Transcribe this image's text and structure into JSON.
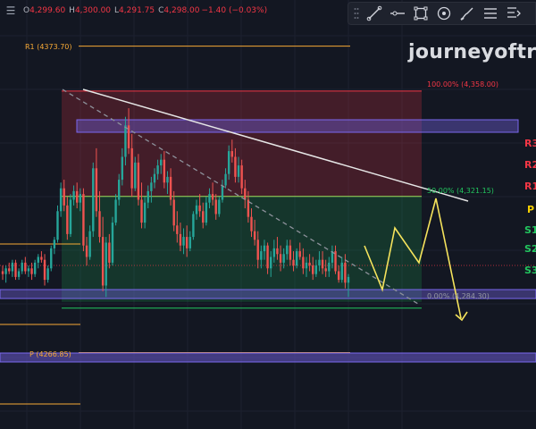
{
  "header": {
    "open_key": "O",
    "open_val": "4,299.60",
    "high_key": "H",
    "high_val": "4,300.00",
    "low_key": "L",
    "low_val": "4,291.75",
    "close_key": "C",
    "close_val": "4,298.00",
    "change": "−1.40 (−0.03%)"
  },
  "toolbar": {
    "icons": [
      "drag-handle-icon",
      "trend-line-icon",
      "horizontal-line-icon",
      "rectangle-icon",
      "circle-target-icon",
      "brush-icon",
      "text-lines-icon",
      "measure-icon"
    ]
  },
  "watermark": "journeyoftra",
  "levels": {
    "r1_left": "R1 (4373.70)",
    "p_left": "P (4266.85)",
    "fib_top": "100.00% (4,358.00)",
    "fib_mid": "50.00% (4,321.15)",
    "fib_bottom": "0.00% (4,284.30)"
  },
  "right_labels": [
    {
      "text": "R3",
      "color": "#f23645"
    },
    {
      "text": "R2",
      "color": "#f23645"
    },
    {
      "text": "R1",
      "color": "#f23645"
    },
    {
      "text": "P",
      "color": "#f5d000"
    },
    {
      "text": "S1",
      "color": "#22c55e"
    },
    {
      "text": "S2",
      "color": "#22c55e"
    },
    {
      "text": "S3",
      "color": "#22c55e"
    }
  ],
  "colors": {
    "background": "#131722",
    "bull": "#26a69a",
    "bear": "#ef5350",
    "projection": "#f5e35c",
    "trendline": "#e6e6e6",
    "zone": "#7b68ee"
  },
  "chart_data": {
    "type": "candlestick",
    "ylim": [
      4252,
      4382
    ],
    "fib_levels": [
      {
        "ratio": "100.00%",
        "price": 4358.0
      },
      {
        "ratio": "50.00%",
        "price": 4321.15
      },
      {
        "ratio": "0.00%",
        "price": 4284.3
      }
    ],
    "pivot_levels": [
      {
        "name": "R1",
        "price": 4373.7
      },
      {
        "name": "P",
        "price": 4266.85
      }
    ],
    "zones": [
      {
        "name": "upper-supply-zone",
        "low": 4346.0,
        "high": 4347.5
      },
      {
        "name": "lower-demand-zone",
        "low": 4284.6,
        "high": 4286.0
      },
      {
        "name": "pivot-zone",
        "low": 4265.8,
        "high": 4267.0
      }
    ],
    "projection_path": [
      {
        "x": 0,
        "y": 4307.0
      },
      {
        "x": 1,
        "y": 4287.5
      },
      {
        "x": 2,
        "y": 4313.0
      },
      {
        "x": 3,
        "y": 4298.0
      },
      {
        "x": 4,
        "y": 4322.0
      },
      {
        "x": 5,
        "y": 4278.0
      }
    ],
    "candles": [
      [
        4295,
        4297,
        4292,
        4294
      ],
      [
        4294,
        4297,
        4291,
        4296
      ],
      [
        4296,
        4298,
        4294,
        4295
      ],
      [
        4295,
        4299,
        4293,
        4298
      ],
      [
        4298,
        4299,
        4292,
        4293
      ],
      [
        4293,
        4296,
        4292,
        4295
      ],
      [
        4295,
        4299,
        4294,
        4298
      ],
      [
        4298,
        4300,
        4294,
        4295
      ],
      [
        4295,
        4297,
        4293,
        4296
      ],
      [
        4296,
        4298,
        4292,
        4294
      ],
      [
        4294,
        4299,
        4293,
        4298
      ],
      [
        4298,
        4301,
        4296,
        4300
      ],
      [
        4300,
        4302,
        4298,
        4299
      ],
      [
        4299,
        4301,
        4290,
        4292
      ],
      [
        4292,
        4297,
        4291,
        4296
      ],
      [
        4296,
        4304,
        4295,
        4303
      ],
      [
        4303,
        4307,
        4301,
        4306
      ],
      [
        4306,
        4318,
        4305,
        4316
      ],
      [
        4316,
        4326,
        4314,
        4324
      ],
      [
        4324,
        4327,
        4316,
        4318
      ],
      [
        4318,
        4321,
        4306,
        4308
      ],
      [
        4308,
        4322,
        4307,
        4320
      ],
      [
        4320,
        4325,
        4318,
        4323
      ],
      [
        4323,
        4326,
        4317,
        4319
      ],
      [
        4319,
        4324,
        4316,
        4322
      ],
      [
        4322,
        4324,
        4302,
        4304
      ],
      [
        4304,
        4307,
        4297,
        4300
      ],
      [
        4300,
        4311,
        4299,
        4309
      ],
      [
        4309,
        4333,
        4307,
        4331
      ],
      [
        4331,
        4338,
        4314,
        4316
      ],
      [
        4316,
        4323,
        4305,
        4307
      ],
      [
        4307,
        4314,
        4288,
        4290
      ],
      [
        4290,
        4307,
        4286,
        4305
      ],
      [
        4305,
        4308,
        4296,
        4298
      ],
      [
        4298,
        4314,
        4297,
        4312
      ],
      [
        4312,
        4322,
        4311,
        4320
      ],
      [
        4320,
        4329,
        4318,
        4327
      ],
      [
        4327,
        4338,
        4325,
        4335
      ],
      [
        4335,
        4349,
        4332,
        4346
      ],
      [
        4346,
        4352,
        4336,
        4338
      ],
      [
        4338,
        4343,
        4321,
        4324
      ],
      [
        4324,
        4335,
        4323,
        4333
      ],
      [
        4333,
        4336,
        4318,
        4320
      ],
      [
        4320,
        4326,
        4310,
        4312
      ],
      [
        4312,
        4321,
        4310,
        4319
      ],
      [
        4319,
        4325,
        4317,
        4323
      ],
      [
        4323,
        4328,
        4319,
        4326
      ],
      [
        4326,
        4331,
        4324,
        4329
      ],
      [
        4329,
        4334,
        4327,
        4332
      ],
      [
        4332,
        4336,
        4329,
        4334
      ],
      [
        4334,
        4337,
        4324,
        4326
      ],
      [
        4326,
        4330,
        4322,
        4328
      ],
      [
        4328,
        4331,
        4318,
        4320
      ],
      [
        4320,
        4323,
        4309,
        4311
      ],
      [
        4311,
        4316,
        4305,
        4308
      ],
      [
        4308,
        4312,
        4302,
        4304
      ],
      [
        4304,
        4310,
        4301,
        4307
      ],
      [
        4307,
        4311,
        4300,
        4303
      ],
      [
        4303,
        4309,
        4302,
        4307
      ],
      [
        4307,
        4316,
        4306,
        4315
      ],
      [
        4315,
        4320,
        4313,
        4318
      ],
      [
        4318,
        4322,
        4314,
        4316
      ],
      [
        4316,
        4319,
        4310,
        4312
      ],
      [
        4312,
        4321,
        4311,
        4319
      ],
      [
        4319,
        4324,
        4317,
        4322
      ],
      [
        4322,
        4326,
        4318,
        4320
      ],
      [
        4320,
        4322,
        4313,
        4315
      ],
      [
        4315,
        4321,
        4314,
        4320
      ],
      [
        4320,
        4327,
        4319,
        4325
      ],
      [
        4325,
        4331,
        4324,
        4329
      ],
      [
        4329,
        4339,
        4327,
        4337
      ],
      [
        4337,
        4341,
        4333,
        4335
      ],
      [
        4335,
        4338,
        4326,
        4328
      ],
      [
        4328,
        4335,
        4326,
        4332
      ],
      [
        4332,
        4334,
        4322,
        4324
      ],
      [
        4324,
        4327,
        4317,
        4320
      ],
      [
        4320,
        4323,
        4312,
        4314
      ],
      [
        4314,
        4317,
        4307,
        4309
      ],
      [
        4309,
        4313,
        4304,
        4306
      ],
      [
        4306,
        4309,
        4296,
        4299
      ],
      [
        4299,
        4304,
        4296,
        4302
      ],
      [
        4302,
        4306,
        4299,
        4304
      ],
      [
        4304,
        4305,
        4294,
        4296
      ],
      [
        4296,
        4302,
        4293,
        4300
      ],
      [
        4300,
        4306,
        4298,
        4303
      ],
      [
        4303,
        4307,
        4299,
        4301
      ],
      [
        4301,
        4304,
        4295,
        4298
      ],
      [
        4298,
        4303,
        4296,
        4301
      ],
      [
        4301,
        4306,
        4299,
        4304
      ],
      [
        4304,
        4306,
        4297,
        4299
      ],
      [
        4299,
        4302,
        4295,
        4297
      ],
      [
        4297,
        4303,
        4296,
        4302
      ],
      [
        4302,
        4305,
        4299,
        4300
      ],
      [
        4300,
        4303,
        4294,
        4296
      ],
      [
        4296,
        4300,
        4293,
        4298
      ],
      [
        4298,
        4301,
        4295,
        4297
      ],
      [
        4297,
        4300,
        4292,
        4294
      ],
      [
        4294,
        4299,
        4293,
        4297
      ],
      [
        4297,
        4302,
        4295,
        4299
      ],
      [
        4299,
        4302,
        4294,
        4296
      ],
      [
        4296,
        4299,
        4293,
        4295
      ],
      [
        4295,
        4300,
        4293,
        4298
      ],
      [
        4298,
        4304,
        4296,
        4302
      ],
      [
        4302,
        4304,
        4294,
        4295
      ],
      [
        4295,
        4297,
        4291,
        4292
      ],
      [
        4292,
        4300,
        4291,
        4298
      ],
      [
        4298,
        4301,
        4289,
        4291
      ],
      [
        4291,
        4294,
        4286,
        4293
      ]
    ]
  }
}
